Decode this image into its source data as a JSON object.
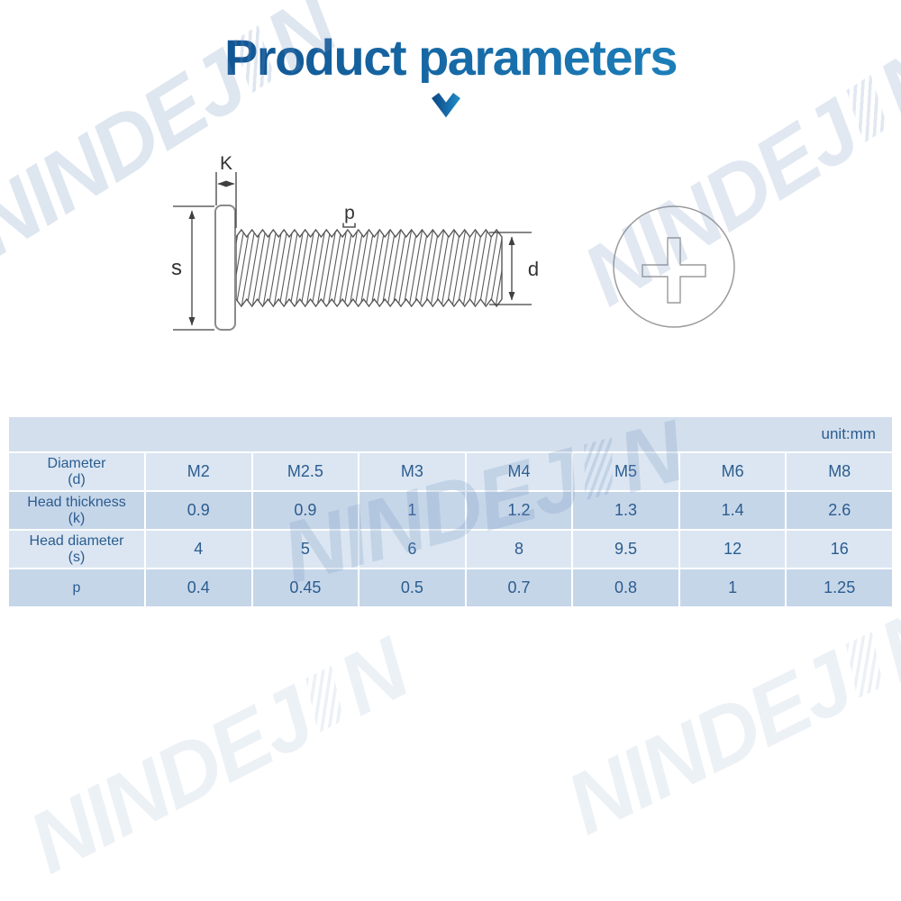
{
  "title": {
    "text": "Product parameters"
  },
  "watermark": {
    "text": "NINDEJIN",
    "part_a": "NINDEJ",
    "part_b": "N"
  },
  "colors": {
    "title_gradient_start": "#0f4d8c",
    "title_gradient_end": "#1e86c0",
    "table_text": "#2b5c8f",
    "row_light": "#dbe6f2",
    "row_dark": "#c6d6e9",
    "row_unit": "#d3dfed"
  },
  "diagram": {
    "label_head_thickness": "K",
    "label_head_diameter": "s",
    "label_pitch": "p",
    "label_thread_diameter": "d"
  },
  "table": {
    "unit_label": "unit:mm",
    "rows": [
      {
        "label": "Diameter",
        "sub": "(d)",
        "values": [
          "M2",
          "M2.5",
          "M3",
          "M4",
          "M5",
          "M6",
          "M8"
        ]
      },
      {
        "label": "Head thickness",
        "sub": "(k)",
        "values": [
          "0.9",
          "0.9",
          "1",
          "1.2",
          "1.3",
          "1.4",
          "2.6"
        ]
      },
      {
        "label": "Head diameter",
        "sub": "(s)",
        "values": [
          "4",
          "5",
          "6",
          "8",
          "9.5",
          "12",
          "16"
        ]
      },
      {
        "label": "p",
        "sub": "",
        "values": [
          "0.4",
          "0.45",
          "0.5",
          "0.7",
          "0.8",
          "1",
          "1.25"
        ]
      }
    ]
  }
}
